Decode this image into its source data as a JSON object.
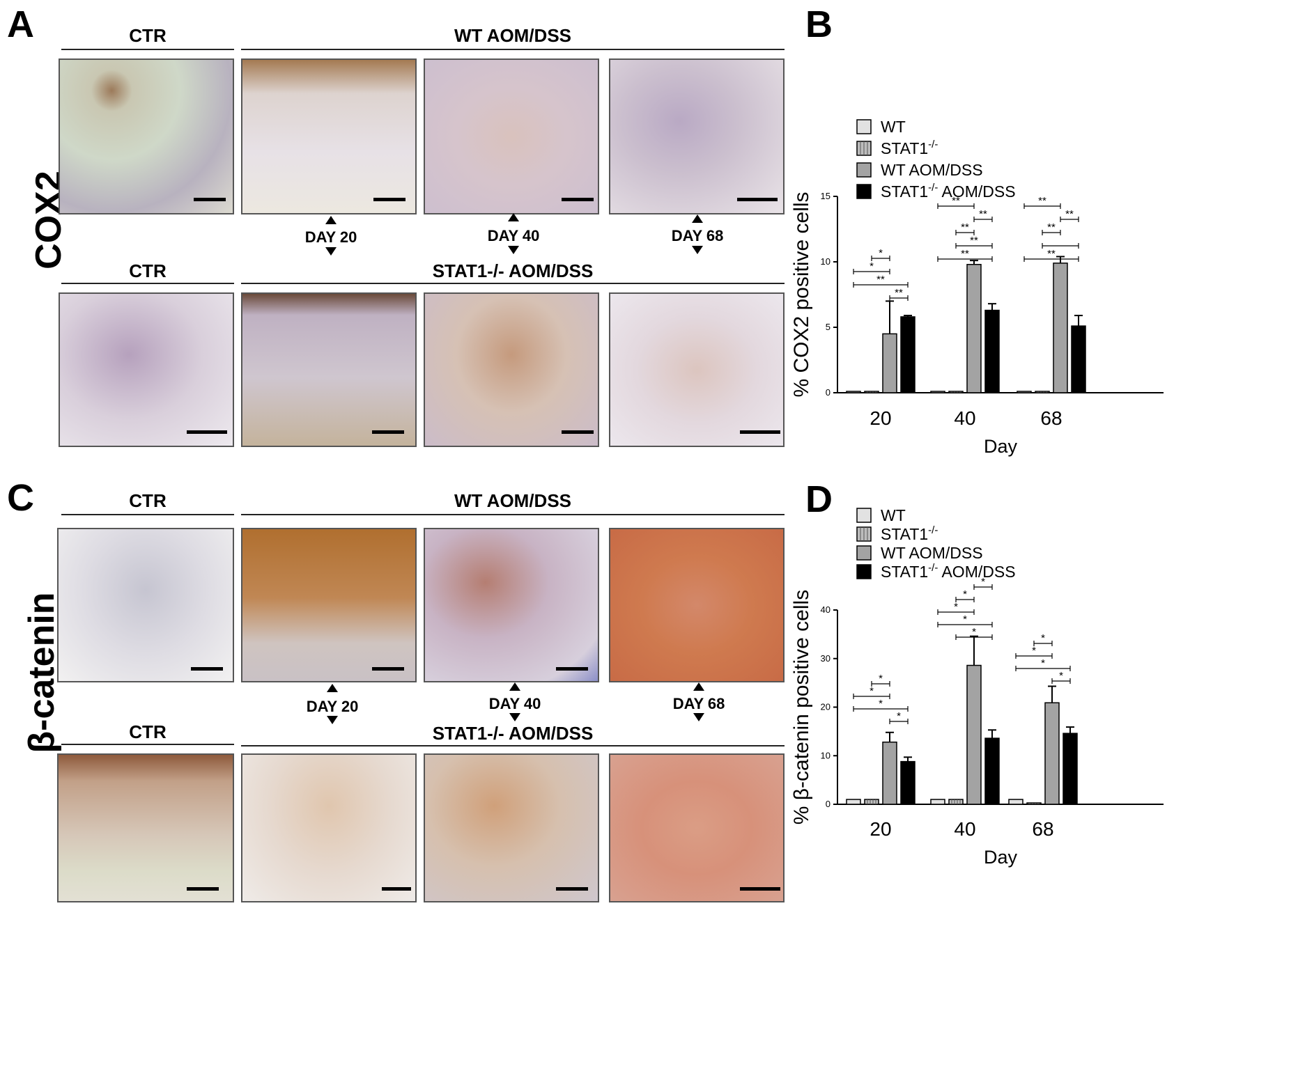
{
  "panels": {
    "A": "A",
    "B": "B",
    "C": "C",
    "D": "D"
  },
  "panel_a": {
    "row_label": "COX2",
    "top_ctr": "CTR",
    "top_group": "WT AOM/DSS",
    "bottom_ctr": "CTR",
    "bottom_group": "STAT1-/- AOM/DSS",
    "days": [
      "DAY 20",
      "DAY 40",
      "DAY 68"
    ]
  },
  "panel_c": {
    "row_label": "β-catenin",
    "top_ctr": "CTR",
    "top_group": "WT AOM/DSS",
    "bottom_ctr": "CTR",
    "bottom_group": "STAT1-/- AOM/DSS",
    "days": [
      "DAY 20",
      "DAY 40",
      "DAY 68"
    ]
  },
  "colors": {
    "wt": "#e2e2e2",
    "stat1": "#bdbdbd",
    "wt_aom": "#a3a3a3",
    "stat1_aom": "#000000",
    "stain_pale": "#ded6e0",
    "stain_purple": "#b9a4c2",
    "stain_brown": "#c08a5a",
    "stain_orange": "#cf7a4f"
  },
  "chart_data": [
    {
      "type": "bar",
      "panel": "B",
      "ylabel": "% COX2 positive cells",
      "xlabel": "Day",
      "categories": [
        "20",
        "40",
        "68"
      ],
      "ylim": [
        0,
        15
      ],
      "yticks": [
        "0",
        "5",
        "10",
        "15"
      ],
      "series": [
        {
          "name": "WT",
          "values": [
            0,
            0,
            0
          ],
          "errors": [
            0,
            0,
            0
          ]
        },
        {
          "name": "STAT1-/-",
          "values": [
            0,
            0,
            0
          ],
          "errors": [
            0,
            0,
            0
          ]
        },
        {
          "name": "WT AOM/DSS",
          "values": [
            4.5,
            9.8,
            9.9
          ],
          "errors": [
            2.5,
            0.3,
            0.5
          ]
        },
        {
          "name": "STAT1-/- AOM/DSS",
          "values": [
            5.8,
            6.3,
            5.1
          ],
          "errors": [
            0.1,
            0.5,
            0.8
          ]
        }
      ],
      "legend": [
        {
          "main": "WT",
          "sup": "",
          "tail": ""
        },
        {
          "main": "STAT1",
          "sup": "-/-",
          "tail": ""
        },
        {
          "main": "WT AOM/DSS",
          "sup": "",
          "tail": ""
        },
        {
          "main": "STAT1",
          "sup": "-/-",
          "tail": " AOM/DSS"
        }
      ],
      "legend_position": "top",
      "significance": [
        {
          "group": 0,
          "from": 2,
          "to": 3,
          "label": "**"
        },
        {
          "group": 0,
          "from": 0,
          "to": 3,
          "label": "**"
        },
        {
          "group": 0,
          "from": 0,
          "to": 2,
          "label": "*"
        },
        {
          "group": 0,
          "from": 1,
          "to": 2,
          "label": "*"
        },
        {
          "group": 1,
          "from": 0,
          "to": 3,
          "label": "**"
        },
        {
          "group": 1,
          "from": 1,
          "to": 3,
          "label": "**"
        },
        {
          "group": 1,
          "from": 1,
          "to": 2,
          "label": "**"
        },
        {
          "group": 1,
          "from": 2,
          "to": 3,
          "label": "**"
        },
        {
          "group": 1,
          "from": 0,
          "to": 2,
          "label": "**"
        },
        {
          "group": 2,
          "from": 0,
          "to": 3,
          "label": "**"
        },
        {
          "group": 2,
          "from": 1,
          "to": 3,
          "label": ""
        },
        {
          "group": 2,
          "from": 1,
          "to": 2,
          "label": "**"
        },
        {
          "group": 2,
          "from": 2,
          "to": 3,
          "label": "**"
        },
        {
          "group": 2,
          "from": 0,
          "to": 2,
          "label": "**"
        }
      ]
    },
    {
      "type": "bar",
      "panel": "D",
      "ylabel": "% β-catenin positive cells",
      "xlabel": "Day",
      "categories": [
        "20",
        "40",
        "68"
      ],
      "ylim": [
        0,
        40
      ],
      "yticks": [
        "0",
        "10",
        "20",
        "30",
        "40"
      ],
      "series": [
        {
          "name": "WT",
          "values": [
            1,
            1,
            1
          ],
          "errors": [
            0,
            0,
            0
          ]
        },
        {
          "name": "STAT1-/-",
          "values": [
            1,
            1,
            0.2
          ],
          "errors": [
            0,
            0,
            0
          ]
        },
        {
          "name": "WT AOM/DSS",
          "values": [
            12.8,
            28.6,
            20.9
          ],
          "errors": [
            2.0,
            6.0,
            3.4
          ]
        },
        {
          "name": "STAT1-/- AOM/DSS",
          "values": [
            8.8,
            13.6,
            14.6
          ],
          "errors": [
            0.9,
            1.7,
            1.3
          ]
        }
      ],
      "legend": [
        {
          "main": "WT",
          "sup": "",
          "tail": ""
        },
        {
          "main": "STAT1",
          "sup": "-/-",
          "tail": ""
        },
        {
          "main": "WT AOM/DSS",
          "sup": "",
          "tail": ""
        },
        {
          "main": "STAT1",
          "sup": "-/-",
          "tail": " AOM/DSS"
        }
      ],
      "legend_position": "top",
      "significance": [
        {
          "group": 0,
          "from": 2,
          "to": 3,
          "label": "*"
        },
        {
          "group": 0,
          "from": 0,
          "to": 3,
          "label": "*"
        },
        {
          "group": 0,
          "from": 0,
          "to": 2,
          "label": "*"
        },
        {
          "group": 0,
          "from": 1,
          "to": 2,
          "label": "*"
        },
        {
          "group": 1,
          "from": 1,
          "to": 3,
          "label": "*"
        },
        {
          "group": 1,
          "from": 0,
          "to": 3,
          "label": "*"
        },
        {
          "group": 1,
          "from": 0,
          "to": 2,
          "label": "*"
        },
        {
          "group": 1,
          "from": 1,
          "to": 2,
          "label": "*"
        },
        {
          "group": 1,
          "from": 2,
          "to": 3,
          "label": "*"
        },
        {
          "group": 2,
          "from": 2,
          "to": 3,
          "label": "*"
        },
        {
          "group": 2,
          "from": 0,
          "to": 3,
          "label": "*"
        },
        {
          "group": 2,
          "from": 0,
          "to": 2,
          "label": "*"
        },
        {
          "group": 2,
          "from": 1,
          "to": 2,
          "label": "*"
        }
      ]
    }
  ]
}
